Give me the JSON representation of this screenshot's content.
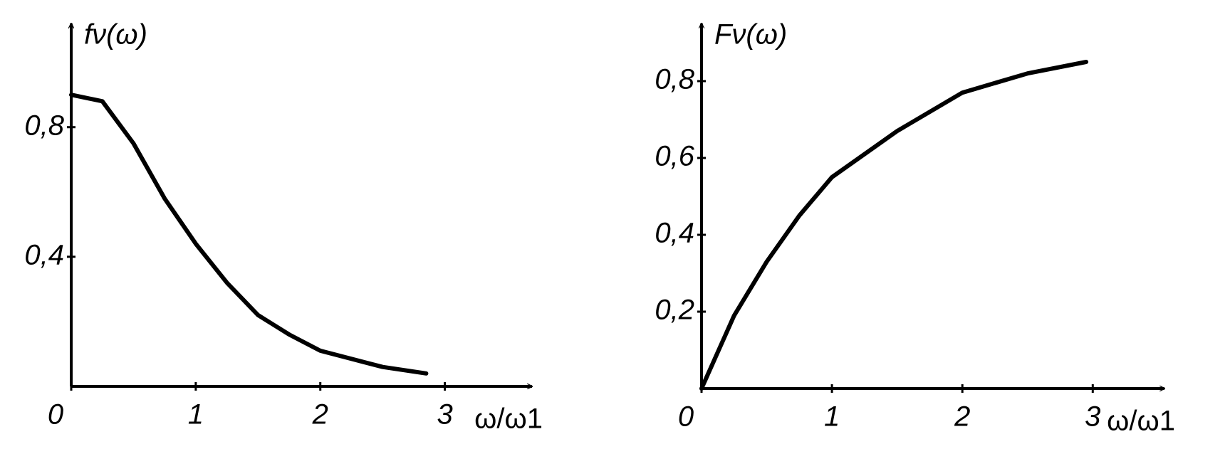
{
  "chart_data": [
    {
      "type": "line",
      "y_label": "fν(ω)",
      "x_label": "ω/ω1",
      "color": "#000000",
      "x": [
        0,
        0.25,
        0.5,
        0.75,
        1,
        1.25,
        1.5,
        1.75,
        2,
        2.5,
        2.85
      ],
      "values": [
        0.9,
        0.88,
        0.75,
        0.58,
        0.44,
        0.32,
        0.22,
        0.16,
        0.11,
        0.06,
        0.04
      ],
      "xlim": [
        0,
        3.7
      ],
      "ylim": [
        0,
        1.12
      ],
      "xticks": [
        0,
        1,
        2,
        3
      ],
      "yticks": [
        {
          "value": 0.4,
          "label": "0,4"
        },
        {
          "value": 0.8,
          "label": "0,8"
        }
      ]
    },
    {
      "type": "line",
      "y_label": "Fν(ω)",
      "x_label": "ω/ω1",
      "color": "#000000",
      "x": [
        0,
        0.25,
        0.5,
        0.75,
        1,
        1.5,
        2,
        2.5,
        2.95
      ],
      "values": [
        0,
        0.19,
        0.33,
        0.45,
        0.55,
        0.67,
        0.77,
        0.82,
        0.85
      ],
      "xlim": [
        0,
        3.55
      ],
      "ylim": [
        0,
        0.95
      ],
      "xticks": [
        0,
        1,
        2,
        3
      ],
      "yticks": [
        {
          "value": 0.2,
          "label": "0,2"
        },
        {
          "value": 0.4,
          "label": "0,4"
        },
        {
          "value": 0.6,
          "label": "0,6"
        },
        {
          "value": 0.8,
          "label": "0,8"
        }
      ]
    }
  ]
}
